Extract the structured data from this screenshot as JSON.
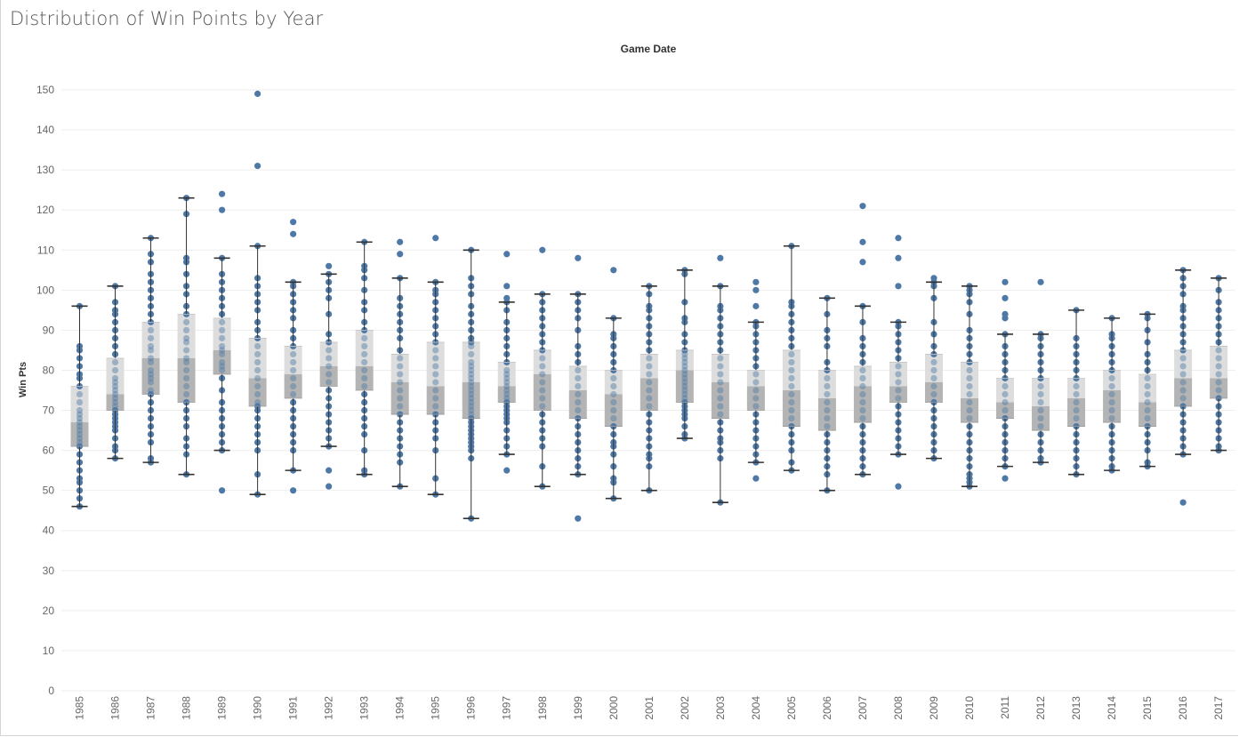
{
  "page": {
    "title": "Distribution of Win Points by Year"
  },
  "chart_data": {
    "type": "box",
    "title": "Distribution of Win Points by Year",
    "column_header": "Game Date",
    "ylabel": "Win Pts",
    "ylim": [
      0,
      150
    ],
    "yticks": [
      0,
      10,
      20,
      30,
      40,
      50,
      60,
      70,
      80,
      90,
      100,
      110,
      120,
      130,
      140,
      150
    ],
    "grid": "horizontal",
    "colors": {
      "point": "#4e79a7",
      "box_upper": "#dddddd",
      "box_lower": "#b4b4b4",
      "whisker": "#333333",
      "grid": "#eeeeee"
    },
    "categories": [
      "1985",
      "1986",
      "1987",
      "1988",
      "1989",
      "1990",
      "1991",
      "1992",
      "1993",
      "1994",
      "1995",
      "1996",
      "1997",
      "1998",
      "1999",
      "2000",
      "2001",
      "2002",
      "2003",
      "2004",
      "2005",
      "2006",
      "2007",
      "2008",
      "2009",
      "2010",
      "2011",
      "2012",
      "2013",
      "2014",
      "2015",
      "2016",
      "2017"
    ],
    "boxes": [
      {
        "year": "1985",
        "min": 46,
        "q1": 61,
        "median": 67,
        "q3": 76,
        "max": 96
      },
      {
        "year": "1986",
        "min": 58,
        "q1": 70,
        "median": 74,
        "q3": 83,
        "max": 101
      },
      {
        "year": "1987",
        "min": 57,
        "q1": 74,
        "median": 83,
        "q3": 92,
        "max": 113
      },
      {
        "year": "1988",
        "min": 54,
        "q1": 72,
        "median": 83,
        "q3": 94,
        "max": 123
      },
      {
        "year": "1989",
        "min": 60,
        "q1": 79,
        "median": 85,
        "q3": 93,
        "max": 108
      },
      {
        "year": "1990",
        "min": 49,
        "q1": 71,
        "median": 78,
        "q3": 88,
        "max": 111
      },
      {
        "year": "1991",
        "min": 55,
        "q1": 73,
        "median": 79,
        "q3": 86,
        "max": 102
      },
      {
        "year": "1992",
        "min": 61,
        "q1": 76,
        "median": 81,
        "q3": 87,
        "max": 104
      },
      {
        "year": "1993",
        "min": 54,
        "q1": 75,
        "median": 81,
        "q3": 90,
        "max": 112
      },
      {
        "year": "1994",
        "min": 51,
        "q1": 69,
        "median": 77,
        "q3": 84,
        "max": 103
      },
      {
        "year": "1995",
        "min": 49,
        "q1": 69,
        "median": 76,
        "q3": 87,
        "max": 102
      },
      {
        "year": "1996",
        "min": 43,
        "q1": 68,
        "median": 77,
        "q3": 87,
        "max": 110
      },
      {
        "year": "1997",
        "min": 59,
        "q1": 72,
        "median": 76,
        "q3": 82,
        "max": 97
      },
      {
        "year": "1998",
        "min": 51,
        "q1": 70,
        "median": 79,
        "q3": 85,
        "max": 99
      },
      {
        "year": "1999",
        "min": 54,
        "q1": 68,
        "median": 75,
        "q3": 81,
        "max": 99
      },
      {
        "year": "2000",
        "min": 48,
        "q1": 66,
        "median": 74,
        "q3": 80,
        "max": 93
      },
      {
        "year": "2001",
        "min": 50,
        "q1": 70,
        "median": 78,
        "q3": 84,
        "max": 101
      },
      {
        "year": "2002",
        "min": 63,
        "q1": 72,
        "median": 80,
        "q3": 85,
        "max": 105
      },
      {
        "year": "2003",
        "min": 47,
        "q1": 68,
        "median": 77,
        "q3": 84,
        "max": 101
      },
      {
        "year": "2004",
        "min": 57,
        "q1": 70,
        "median": 76,
        "q3": 80,
        "max": 92
      },
      {
        "year": "2005",
        "min": 55,
        "q1": 66,
        "median": 75,
        "q3": 85,
        "max": 111
      },
      {
        "year": "2006",
        "min": 50,
        "q1": 65,
        "median": 73,
        "q3": 80,
        "max": 98
      },
      {
        "year": "2007",
        "min": 54,
        "q1": 67,
        "median": 76,
        "q3": 81,
        "max": 96
      },
      {
        "year": "2008",
        "min": 59,
        "q1": 72,
        "median": 76,
        "q3": 82,
        "max": 92
      },
      {
        "year": "2009",
        "min": 58,
        "q1": 72,
        "median": 77,
        "q3": 84,
        "max": 102
      },
      {
        "year": "2010",
        "min": 51,
        "q1": 67,
        "median": 73,
        "q3": 82,
        "max": 101
      },
      {
        "year": "2011",
        "min": 56,
        "q1": 68,
        "median": 72,
        "q3": 78,
        "max": 89
      },
      {
        "year": "2012",
        "min": 57,
        "q1": 65,
        "median": 71,
        "q3": 78,
        "max": 89
      },
      {
        "year": "2013",
        "min": 54,
        "q1": 66,
        "median": 73,
        "q3": 78,
        "max": 95
      },
      {
        "year": "2014",
        "min": 55,
        "q1": 67,
        "median": 75,
        "q3": 80,
        "max": 93
      },
      {
        "year": "2015",
        "min": 56,
        "q1": 66,
        "median": 72,
        "q3": 79,
        "max": 94
      },
      {
        "year": "2016",
        "min": 59,
        "q1": 71,
        "median": 78,
        "q3": 85,
        "max": 105
      },
      {
        "year": "2017",
        "min": 60,
        "q1": 73,
        "median": 78,
        "q3": 86,
        "max": 103
      }
    ],
    "points": {
      "1985": [
        46,
        48,
        50,
        52,
        53,
        55,
        57,
        59,
        61,
        62,
        63,
        64,
        65,
        66,
        67,
        68,
        69,
        70,
        72,
        74,
        76,
        78,
        79,
        81,
        83,
        85,
        86,
        96
      ],
      "1986": [
        58,
        60,
        61,
        63,
        65,
        66,
        67,
        68,
        69,
        70,
        71,
        72,
        73,
        74,
        75,
        76,
        77,
        78,
        80,
        82,
        84,
        86,
        88,
        90,
        92,
        94,
        95,
        97,
        101
      ],
      "1987": [
        57,
        58,
        62,
        64,
        66,
        68,
        70,
        72,
        74,
        75,
        77,
        78,
        79,
        80,
        82,
        83,
        85,
        86,
        88,
        90,
        92,
        94,
        96,
        98,
        100,
        102,
        104,
        107,
        109,
        113
      ],
      "1988": [
        54,
        59,
        61,
        63,
        66,
        68,
        70,
        72,
        74,
        76,
        78,
        80,
        82,
        83,
        85,
        87,
        88,
        90,
        92,
        94,
        96,
        99,
        101,
        104,
        107,
        108,
        119,
        123
      ],
      "1989": [
        50,
        60,
        62,
        64,
        66,
        68,
        70,
        72,
        75,
        78,
        80,
        81,
        82,
        84,
        85,
        86,
        88,
        90,
        92,
        94,
        96,
        98,
        100,
        102,
        104,
        108,
        120,
        124
      ],
      "1990": [
        49,
        54,
        60,
        62,
        64,
        66,
        68,
        70,
        71,
        72,
        74,
        76,
        78,
        80,
        82,
        84,
        86,
        88,
        90,
        92,
        95,
        97,
        99,
        101,
        103,
        111,
        131,
        149
      ],
      "1991": [
        50,
        55,
        60,
        62,
        64,
        66,
        68,
        70,
        72,
        74,
        76,
        78,
        80,
        82,
        84,
        86,
        88,
        90,
        93,
        95,
        97,
        99,
        101,
        102,
        114,
        117
      ],
      "1992": [
        51,
        55,
        61,
        63,
        65,
        67,
        69,
        71,
        73,
        75,
        77,
        79,
        81,
        83,
        85,
        87,
        89,
        94,
        98,
        100,
        102,
        104,
        106
      ],
      "1993": [
        54,
        55,
        60,
        64,
        66,
        68,
        70,
        72,
        74,
        76,
        78,
        80,
        82,
        84,
        86,
        88,
        90,
        92,
        95,
        97,
        100,
        103,
        105,
        106,
        112
      ],
      "1994": [
        51,
        57,
        59,
        61,
        63,
        65,
        67,
        69,
        71,
        73,
        75,
        77,
        79,
        81,
        83,
        85,
        88,
        90,
        92,
        94,
        96,
        98,
        103,
        109,
        112
      ],
      "1995": [
        49,
        53,
        60,
        63,
        65,
        67,
        69,
        71,
        73,
        75,
        77,
        79,
        81,
        83,
        85,
        87,
        89,
        91,
        93,
        95,
        97,
        99,
        100,
        102,
        113
      ],
      "1996": [
        43,
        58,
        60,
        61,
        62,
        63,
        64,
        65,
        66,
        67,
        68,
        69,
        70,
        71,
        72,
        73,
        74,
        75,
        76,
        77,
        78,
        79,
        80,
        81,
        82,
        84,
        86,
        87,
        88,
        90,
        92,
        94,
        96,
        99,
        101,
        103,
        110
      ],
      "1997": [
        55,
        59,
        61,
        63,
        65,
        67,
        68,
        69,
        70,
        71,
        72,
        73,
        74,
        75,
        76,
        77,
        78,
        79,
        80,
        82,
        84,
        86,
        88,
        90,
        92,
        95,
        97,
        98,
        101,
        109
      ],
      "1998": [
        51,
        56,
        61,
        63,
        65,
        67,
        69,
        71,
        73,
        75,
        77,
        79,
        81,
        83,
        85,
        87,
        89,
        91,
        93,
        95,
        97,
        99,
        110
      ],
      "1999": [
        43,
        54,
        56,
        58,
        60,
        62,
        64,
        66,
        68,
        70,
        72,
        74,
        76,
        78,
        80,
        82,
        84,
        86,
        90,
        93,
        95,
        97,
        99,
        108
      ],
      "2000": [
        48,
        52,
        53,
        56,
        59,
        61,
        62,
        64,
        66,
        68,
        70,
        72,
        74,
        76,
        78,
        80,
        82,
        84,
        86,
        88,
        89,
        93,
        105
      ],
      "2001": [
        50,
        56,
        58,
        59,
        61,
        63,
        65,
        67,
        69,
        71,
        73,
        75,
        77,
        79,
        81,
        83,
        85,
        87,
        89,
        91,
        93,
        95,
        96,
        99,
        101
      ],
      "2002": [
        63,
        64,
        66,
        68,
        69,
        70,
        71,
        72,
        73,
        74,
        75,
        76,
        77,
        78,
        79,
        80,
        81,
        82,
        83,
        84,
        85,
        87,
        89,
        92,
        93,
        97,
        104,
        105
      ],
      "2003": [
        47,
        58,
        60,
        62,
        63,
        65,
        67,
        69,
        71,
        73,
        75,
        77,
        79,
        81,
        83,
        85,
        87,
        89,
        91,
        93,
        95,
        96,
        101,
        108
      ],
      "2004": [
        53,
        57,
        59,
        61,
        63,
        65,
        67,
        69,
        71,
        73,
        75,
        77,
        79,
        81,
        83,
        85,
        87,
        89,
        91,
        92,
        96,
        100,
        102
      ],
      "2005": [
        55,
        57,
        60,
        62,
        64,
        66,
        68,
        70,
        72,
        74,
        76,
        78,
        80,
        82,
        84,
        86,
        88,
        90,
        92,
        94,
        96,
        97,
        111
      ],
      "2006": [
        50,
        54,
        56,
        58,
        60,
        62,
        64,
        66,
        68,
        70,
        72,
        74,
        76,
        78,
        80,
        82,
        86,
        88,
        90,
        94,
        98
      ],
      "2007": [
        54,
        56,
        58,
        60,
        62,
        64,
        66,
        68,
        70,
        72,
        74,
        76,
        78,
        80,
        82,
        84,
        86,
        88,
        92,
        96,
        107,
        112,
        121
      ],
      "2008": [
        51,
        59,
        61,
        63,
        65,
        67,
        69,
        71,
        73,
        75,
        77,
        79,
        81,
        83,
        85,
        87,
        89,
        91,
        92,
        101,
        108,
        113
      ],
      "2009": [
        58,
        60,
        62,
        64,
        66,
        68,
        70,
        72,
        74,
        76,
        78,
        80,
        82,
        84,
        86,
        89,
        92,
        98,
        101,
        102,
        103
      ],
      "2010": [
        51,
        52,
        53,
        54,
        56,
        58,
        60,
        62,
        64,
        66,
        68,
        70,
        72,
        74,
        76,
        78,
        80,
        82,
        84,
        86,
        88,
        90,
        94,
        97,
        99,
        100,
        101
      ],
      "2011": [
        53,
        56,
        58,
        60,
        62,
        64,
        66,
        68,
        70,
        72,
        74,
        76,
        78,
        80,
        82,
        84,
        86,
        89,
        93,
        94,
        98,
        102
      ],
      "2012": [
        57,
        58,
        60,
        62,
        64,
        66,
        68,
        70,
        72,
        74,
        76,
        78,
        80,
        82,
        84,
        86,
        88,
        89,
        102
      ],
      "2013": [
        54,
        56,
        58,
        60,
        62,
        64,
        66,
        68,
        70,
        72,
        74,
        76,
        78,
        80,
        82,
        84,
        86,
        88,
        95
      ],
      "2014": [
        55,
        56,
        58,
        60,
        62,
        64,
        66,
        68,
        70,
        72,
        74,
        76,
        78,
        80,
        82,
        84,
        86,
        88,
        89,
        93
      ],
      "2015": [
        56,
        57,
        60,
        62,
        64,
        66,
        68,
        70,
        72,
        74,
        76,
        78,
        80,
        82,
        84,
        87,
        90,
        93,
        94
      ],
      "2016": [
        47,
        59,
        61,
        63,
        65,
        67,
        69,
        71,
        73,
        75,
        77,
        79,
        81,
        83,
        85,
        87,
        89,
        91,
        93,
        95,
        96,
        99,
        101,
        103,
        105
      ],
      "2017": [
        60,
        61,
        63,
        65,
        67,
        69,
        71,
        73,
        75,
        77,
        79,
        81,
        83,
        85,
        87,
        89,
        91,
        93,
        95,
        97,
        100,
        103
      ]
    }
  }
}
